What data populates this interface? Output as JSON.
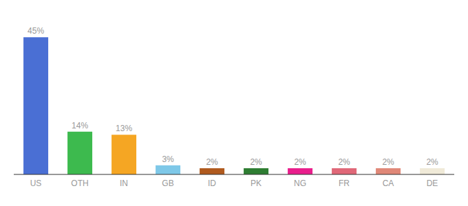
{
  "chart_data": {
    "type": "bar",
    "categories": [
      "US",
      "OTH",
      "IN",
      "GB",
      "ID",
      "PK",
      "NG",
      "FR",
      "CA",
      "DE"
    ],
    "values": [
      45,
      14,
      13,
      3,
      2,
      2,
      2,
      2,
      2,
      2
    ],
    "value_labels": [
      "45%",
      "14%",
      "13%",
      "3%",
      "2%",
      "2%",
      "2%",
      "2%",
      "2%",
      "2%"
    ],
    "colors": [
      "#4a6fd4",
      "#3dba4e",
      "#f5a623",
      "#7ec8e8",
      "#b05a1e",
      "#2e7d32",
      "#e91e8c",
      "#e06878",
      "#e08878",
      "#f0ead8"
    ],
    "ylim": [
      0,
      50
    ],
    "data_labels": true,
    "grid": false,
    "tick_labels": "x"
  }
}
